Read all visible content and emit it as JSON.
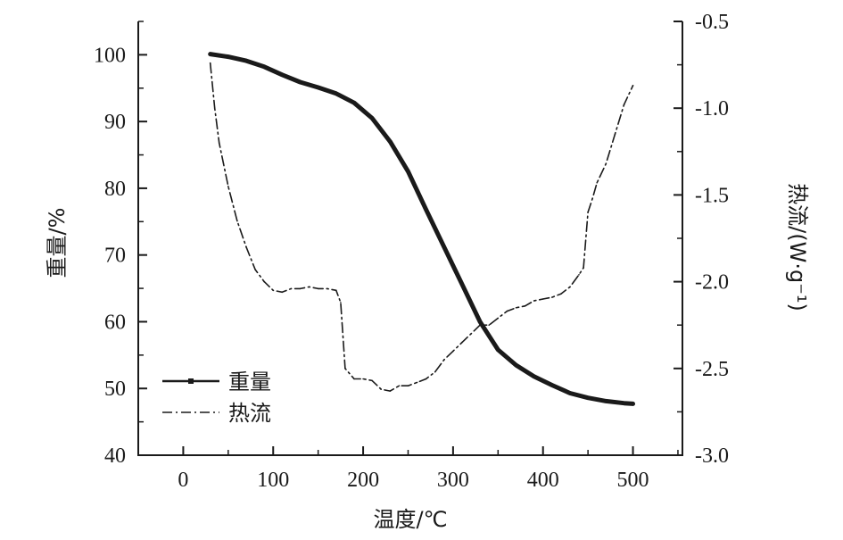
{
  "chart_data": {
    "type": "line",
    "title": "",
    "xlabel": "温度/℃",
    "ylabel_left": "重量/%",
    "ylabel_right": "热流/(W·g⁻¹)",
    "xlim": [
      -50,
      555
    ],
    "ylim_left": [
      40,
      105
    ],
    "ylim_right": [
      -3.0,
      -0.5
    ],
    "x_ticks": [
      "0",
      "100",
      "200",
      "300",
      "400",
      "500"
    ],
    "x_tick_values": [
      0,
      100,
      200,
      300,
      400,
      500
    ],
    "y_left_ticks": [
      "40",
      "50",
      "60",
      "70",
      "80",
      "90",
      "100"
    ],
    "y_left_tick_values": [
      40,
      50,
      60,
      70,
      80,
      90,
      100
    ],
    "y_right_ticks": [
      "-3.0",
      "-2.5",
      "-2.0",
      "-1.5",
      "-1.0",
      "-0.5"
    ],
    "y_right_tick_values": [
      -3.0,
      -2.5,
      -2.0,
      -1.5,
      -1.0,
      -0.5
    ],
    "grid": false,
    "legend_position": "bottom-left",
    "series": [
      {
        "name": "重量",
        "axis": "left",
        "style": "solid-thick",
        "color": "#1a1a1a",
        "x": [
          30,
          50,
          70,
          90,
          110,
          130,
          150,
          170,
          190,
          210,
          230,
          250,
          270,
          290,
          310,
          330,
          350,
          370,
          390,
          410,
          430,
          450,
          470,
          490,
          500
        ],
        "y": [
          100.1,
          99.7,
          99.1,
          98.2,
          97.0,
          95.9,
          95.1,
          94.2,
          92.8,
          90.5,
          87.0,
          82.5,
          76.8,
          71.2,
          65.6,
          60.0,
          55.8,
          53.5,
          51.8,
          50.5,
          49.3,
          48.6,
          48.1,
          47.8,
          47.7
        ]
      },
      {
        "name": "热流",
        "axis": "right",
        "style": "dash-dot",
        "color": "#1a1a1a",
        "x": [
          30,
          35,
          40,
          50,
          60,
          70,
          80,
          90,
          100,
          110,
          120,
          130,
          140,
          150,
          160,
          170,
          175,
          180,
          190,
          200,
          210,
          220,
          230,
          240,
          250,
          260,
          270,
          280,
          290,
          300,
          310,
          320,
          330,
          340,
          350,
          360,
          370,
          380,
          390,
          400,
          410,
          420,
          430,
          440,
          445,
          450,
          455,
          460,
          470,
          480,
          490,
          500
        ],
        "y": [
          -0.74,
          -1.0,
          -1.2,
          -1.45,
          -1.65,
          -1.8,
          -1.93,
          -2.0,
          -2.05,
          -2.06,
          -2.04,
          -2.04,
          -2.03,
          -2.04,
          -2.04,
          -2.05,
          -2.12,
          -2.5,
          -2.56,
          -2.56,
          -2.57,
          -2.62,
          -2.63,
          -2.6,
          -2.6,
          -2.58,
          -2.56,
          -2.52,
          -2.45,
          -2.4,
          -2.35,
          -2.3,
          -2.25,
          -2.25,
          -2.21,
          -2.17,
          -2.15,
          -2.14,
          -2.11,
          -2.1,
          -2.09,
          -2.07,
          -2.03,
          -1.96,
          -1.92,
          -1.6,
          -1.52,
          -1.43,
          -1.32,
          -1.15,
          -0.98,
          -0.87
        ]
      }
    ]
  }
}
